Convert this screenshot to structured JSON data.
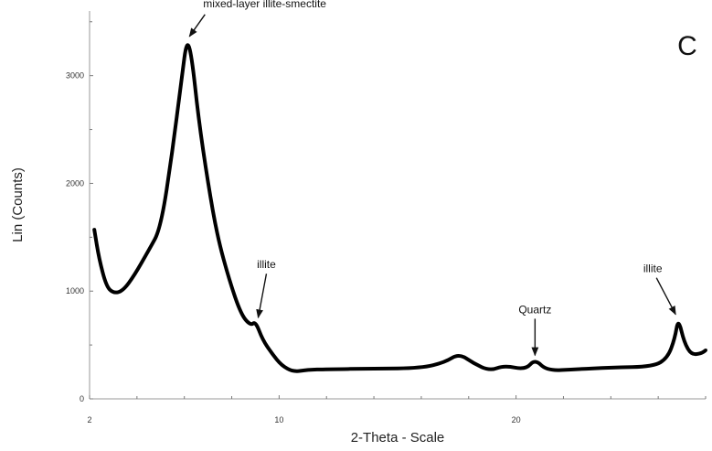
{
  "chart_data": {
    "type": "line",
    "panel_label": "C",
    "xlabel": "2-Theta - Scale",
    "ylabel": "Lin (Counts)",
    "xlim": [
      2,
      28
    ],
    "ylim": [
      0,
      3600
    ],
    "x_ticks": [
      2,
      10,
      20
    ],
    "y_ticks": [
      0,
      1000,
      2000,
      3000
    ],
    "grid": false,
    "series": [
      {
        "values": [
          [
            2.2,
            1570
          ],
          [
            2.4,
            1300
          ],
          [
            2.7,
            1050
          ],
          [
            3.0,
            980
          ],
          [
            3.4,
            1000
          ],
          [
            3.9,
            1150
          ],
          [
            4.5,
            1380
          ],
          [
            5.0,
            1580
          ],
          [
            5.5,
            2300
          ],
          [
            5.9,
            3000
          ],
          [
            6.1,
            3330
          ],
          [
            6.3,
            3200
          ],
          [
            6.6,
            2600
          ],
          [
            7.0,
            2000
          ],
          [
            7.4,
            1500
          ],
          [
            7.9,
            1100
          ],
          [
            8.4,
            780
          ],
          [
            8.8,
            680
          ],
          [
            9.0,
            720
          ],
          [
            9.3,
            550
          ],
          [
            9.7,
            420
          ],
          [
            10.1,
            310
          ],
          [
            10.6,
            250
          ],
          [
            11.2,
            270
          ],
          [
            12.0,
            275
          ],
          [
            14.0,
            280
          ],
          [
            16.0,
            285
          ],
          [
            17.0,
            340
          ],
          [
            17.6,
            420
          ],
          [
            18.2,
            330
          ],
          [
            18.9,
            260
          ],
          [
            19.5,
            310
          ],
          [
            20.4,
            270
          ],
          [
            20.8,
            370
          ],
          [
            21.3,
            260
          ],
          [
            22.5,
            275
          ],
          [
            24.0,
            290
          ],
          [
            25.8,
            300
          ],
          [
            26.4,
            380
          ],
          [
            26.7,
            560
          ],
          [
            26.85,
            750
          ],
          [
            27.1,
            520
          ],
          [
            27.4,
            410
          ],
          [
            27.8,
            420
          ],
          [
            28.0,
            450
          ]
        ]
      }
    ],
    "annotations": [
      {
        "text": "mixed-layer illite-smectite",
        "x": 6.1,
        "y": 3330
      },
      {
        "text": "illite",
        "x": 9.0,
        "y": 720
      },
      {
        "text": "Quartz",
        "x": 20.8,
        "y": 370
      },
      {
        "text": "illite",
        "x": 26.85,
        "y": 750
      }
    ]
  }
}
